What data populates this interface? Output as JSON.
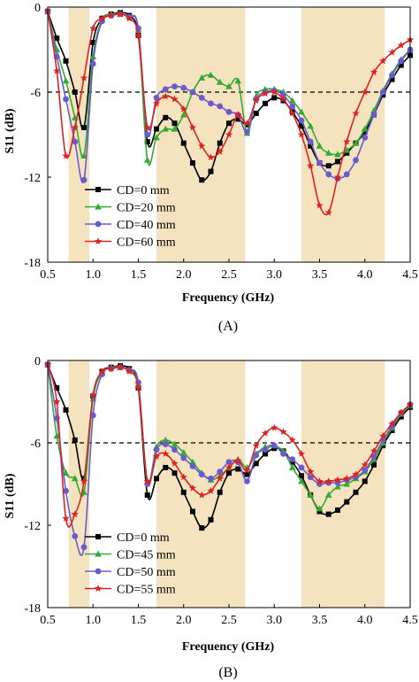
{
  "chart_data": [
    {
      "type": "line",
      "panel_label": "(A)",
      "xlabel": "Frequency (GHz)",
      "ylabel": "S11 (dB)",
      "xlim": [
        0.5,
        4.5
      ],
      "ylim": [
        -18,
        0
      ],
      "xticks": [
        "0.5",
        "1.0",
        "1.5",
        "2.0",
        "2.5",
        "3.0",
        "3.5",
        "4.0",
        "4.5"
      ],
      "yticks": [
        "0",
        "-6",
        "-12",
        "-18"
      ],
      "grid": false,
      "legend_position": "lower-left",
      "reference_line": {
        "y": -6,
        "style": "dashed",
        "color": "#000000"
      },
      "shaded_bands": [
        [
          0.73,
          0.96
        ],
        [
          1.7,
          2.68
        ],
        [
          3.3,
          4.22
        ]
      ],
      "band_color": "#f5e3bf",
      "series": [
        {
          "name": "CD=0 mm",
          "color": "#000000",
          "marker": "square",
          "x": [
            0.5,
            0.6,
            0.7,
            0.8,
            0.9,
            1.0,
            1.1,
            1.2,
            1.3,
            1.4,
            1.5,
            1.6,
            1.7,
            1.8,
            1.9,
            2.0,
            2.1,
            2.2,
            2.3,
            2.4,
            2.5,
            2.6,
            2.7,
            2.8,
            2.9,
            3.0,
            3.1,
            3.2,
            3.3,
            3.4,
            3.5,
            3.6,
            3.7,
            3.8,
            3.9,
            4.0,
            4.1,
            4.2,
            4.3,
            4.4,
            4.5
          ],
          "y": [
            -0.3,
            -2.2,
            -3.8,
            -6.0,
            -8.5,
            -2.5,
            -0.8,
            -0.5,
            -0.4,
            -0.6,
            -2.0,
            -9.5,
            -8.6,
            -7.8,
            -8.2,
            -9.6,
            -11.0,
            -12.2,
            -11.6,
            -9.6,
            -8.2,
            -7.9,
            -8.3,
            -7.5,
            -6.8,
            -6.4,
            -6.6,
            -7.4,
            -8.4,
            -9.8,
            -11.0,
            -11.2,
            -10.9,
            -10.3,
            -9.6,
            -8.8,
            -7.6,
            -6.2,
            -5.1,
            -4.1,
            -3.4
          ]
        },
        {
          "name": "CD=20 mm",
          "color": "#33aa33",
          "marker": "triangle",
          "x": [
            0.5,
            0.6,
            0.7,
            0.8,
            0.9,
            1.0,
            1.1,
            1.2,
            1.3,
            1.4,
            1.5,
            1.6,
            1.7,
            1.8,
            1.9,
            2.0,
            2.1,
            2.2,
            2.3,
            2.4,
            2.5,
            2.6,
            2.7,
            2.8,
            2.9,
            3.0,
            3.1,
            3.2,
            3.3,
            3.4,
            3.5,
            3.6,
            3.7,
            3.8,
            3.9,
            4.0,
            4.1,
            4.2,
            4.3,
            4.4,
            4.5
          ],
          "y": [
            -0.3,
            -3.0,
            -5.2,
            -7.8,
            -10.5,
            -3.5,
            -0.9,
            -0.5,
            -0.5,
            -0.7,
            -1.6,
            -10.8,
            -9.2,
            -8.6,
            -8.6,
            -7.6,
            -6.0,
            -5.0,
            -4.8,
            -5.3,
            -5.6,
            -5.2,
            -8.9,
            -6.3,
            -5.8,
            -5.8,
            -6.0,
            -6.6,
            -7.4,
            -8.4,
            -9.8,
            -10.3,
            -10.4,
            -10.1,
            -9.6,
            -8.6,
            -7.3,
            -5.9,
            -4.7,
            -3.7,
            -3.0
          ]
        },
        {
          "name": "CD=40 mm",
          "color": "#6a5acd",
          "marker": "circle",
          "x": [
            0.5,
            0.6,
            0.7,
            0.8,
            0.9,
            1.0,
            1.1,
            1.2,
            1.3,
            1.4,
            1.5,
            1.6,
            1.7,
            1.8,
            1.9,
            2.0,
            2.1,
            2.2,
            2.3,
            2.4,
            2.5,
            2.6,
            2.7,
            2.8,
            2.9,
            3.0,
            3.1,
            3.2,
            3.3,
            3.4,
            3.5,
            3.6,
            3.7,
            3.8,
            3.9,
            4.0,
            4.1,
            4.2,
            4.3,
            4.4,
            4.5
          ],
          "y": [
            -0.3,
            -3.5,
            -6.5,
            -9.5,
            -12.2,
            -4.0,
            -1.0,
            -0.6,
            -0.5,
            -0.7,
            -1.5,
            -9.0,
            -6.4,
            -5.8,
            -5.6,
            -5.7,
            -6.0,
            -6.4,
            -6.8,
            -7.0,
            -7.4,
            -7.6,
            -8.8,
            -6.5,
            -6.0,
            -5.9,
            -6.2,
            -7.0,
            -8.0,
            -9.5,
            -11.0,
            -11.8,
            -12.1,
            -11.8,
            -10.8,
            -9.2,
            -7.6,
            -6.0,
            -4.8,
            -3.8,
            -3.0
          ]
        },
        {
          "name": "CD=60 mm",
          "color": "#dd2222",
          "marker": "star",
          "x": [
            0.5,
            0.6,
            0.7,
            0.8,
            0.9,
            1.0,
            1.1,
            1.2,
            1.3,
            1.4,
            1.5,
            1.6,
            1.7,
            1.8,
            1.9,
            2.0,
            2.1,
            2.2,
            2.3,
            2.4,
            2.5,
            2.6,
            2.7,
            2.8,
            2.9,
            3.0,
            3.1,
            3.2,
            3.3,
            3.4,
            3.5,
            3.6,
            3.7,
            3.8,
            3.9,
            4.0,
            4.1,
            4.2,
            4.3,
            4.4,
            4.5
          ],
          "y": [
            -0.3,
            -4.5,
            -10.5,
            -8.5,
            -5.0,
            -1.5,
            -0.8,
            -0.6,
            -0.5,
            -0.8,
            -2.0,
            -8.5,
            -6.8,
            -6.3,
            -6.5,
            -7.2,
            -8.5,
            -9.8,
            -10.6,
            -10.2,
            -9.0,
            -7.6,
            -8.2,
            -6.6,
            -6.1,
            -6.0,
            -6.5,
            -7.5,
            -9.0,
            -11.2,
            -14.0,
            -14.5,
            -12.0,
            -9.5,
            -7.5,
            -6.0,
            -4.6,
            -3.8,
            -3.2,
            -2.7,
            -2.3
          ]
        }
      ]
    },
    {
      "type": "line",
      "panel_label": "(B)",
      "xlabel": "Frequency (GHz)",
      "ylabel": "S11 (dB)",
      "xlim": [
        0.5,
        4.5
      ],
      "ylim": [
        -18,
        0
      ],
      "xticks": [
        "0.5",
        "1.0",
        "1.5",
        "2.0",
        "2.5",
        "3.0",
        "3.5",
        "4.0",
        "4.5"
      ],
      "yticks": [
        "0",
        "-6",
        "-12",
        "-18"
      ],
      "grid": false,
      "legend_position": "lower-left",
      "reference_line": {
        "y": -6,
        "style": "dashed",
        "color": "#000000"
      },
      "shaded_bands": [
        [
          0.73,
          0.96
        ],
        [
          1.7,
          2.68
        ],
        [
          3.3,
          4.22
        ]
      ],
      "band_color": "#f5e3bf",
      "series": [
        {
          "name": "CD=0 mm",
          "color": "#000000",
          "marker": "square",
          "x": [
            0.5,
            0.6,
            0.7,
            0.8,
            0.9,
            1.0,
            1.1,
            1.2,
            1.3,
            1.4,
            1.5,
            1.6,
            1.7,
            1.8,
            1.9,
            2.0,
            2.1,
            2.2,
            2.3,
            2.4,
            2.5,
            2.6,
            2.7,
            2.8,
            2.9,
            3.0,
            3.1,
            3.2,
            3.3,
            3.4,
            3.5,
            3.6,
            3.7,
            3.8,
            3.9,
            4.0,
            4.1,
            4.2,
            4.3,
            4.4,
            4.5
          ],
          "y": [
            -0.3,
            -2.0,
            -3.6,
            -5.8,
            -8.6,
            -2.6,
            -0.8,
            -0.5,
            -0.4,
            -0.6,
            -2.0,
            -9.8,
            -8.6,
            -7.8,
            -8.2,
            -9.6,
            -11.0,
            -12.2,
            -11.6,
            -9.6,
            -8.2,
            -7.9,
            -8.3,
            -7.5,
            -6.8,
            -6.4,
            -6.6,
            -7.4,
            -8.4,
            -9.8,
            -11.0,
            -11.2,
            -10.9,
            -10.3,
            -9.6,
            -8.8,
            -7.6,
            -6.2,
            -5.1,
            -4.1,
            -3.4
          ]
        },
        {
          "name": "CD=45 mm",
          "color": "#33aa33",
          "marker": "triangle",
          "x": [
            0.5,
            0.6,
            0.7,
            0.8,
            0.9,
            1.0,
            1.1,
            1.2,
            1.3,
            1.4,
            1.5,
            1.6,
            1.7,
            1.8,
            1.9,
            2.0,
            2.1,
            2.2,
            2.3,
            2.4,
            2.5,
            2.6,
            2.7,
            2.8,
            2.9,
            3.0,
            3.1,
            3.2,
            3.3,
            3.4,
            3.5,
            3.6,
            3.7,
            3.8,
            3.9,
            4.0,
            4.1,
            4.2,
            4.3,
            4.4,
            4.5
          ],
          "y": [
            -0.3,
            -5.5,
            -8.2,
            -8.6,
            -9.6,
            -2.8,
            -0.9,
            -0.5,
            -0.5,
            -0.7,
            -1.7,
            -8.8,
            -6.3,
            -5.8,
            -6.1,
            -6.7,
            -7.4,
            -8.2,
            -8.7,
            -8.4,
            -7.8,
            -7.2,
            -7.8,
            -6.8,
            -6.3,
            -6.2,
            -6.6,
            -7.8,
            -8.8,
            -9.8,
            -10.8,
            -9.8,
            -9.2,
            -9.0,
            -8.6,
            -8.1,
            -7.2,
            -6.0,
            -4.9,
            -3.9,
            -3.3
          ]
        },
        {
          "name": "CD=50 mm",
          "color": "#6a5acd",
          "marker": "circle",
          "x": [
            0.5,
            0.6,
            0.7,
            0.8,
            0.9,
            1.0,
            1.1,
            1.2,
            1.3,
            1.4,
            1.5,
            1.6,
            1.7,
            1.8,
            1.9,
            2.0,
            2.1,
            2.2,
            2.3,
            2.4,
            2.5,
            2.6,
            2.7,
            2.8,
            2.9,
            3.0,
            3.1,
            3.2,
            3.3,
            3.4,
            3.5,
            3.6,
            3.7,
            3.8,
            3.9,
            4.0,
            4.1,
            4.2,
            4.3,
            4.4,
            4.5
          ],
          "y": [
            -0.3,
            -4.2,
            -9.5,
            -12.8,
            -13.6,
            -4.0,
            -1.0,
            -0.6,
            -0.5,
            -0.7,
            -1.6,
            -9.0,
            -6.5,
            -6.1,
            -6.5,
            -7.1,
            -7.7,
            -8.3,
            -8.6,
            -8.1,
            -7.4,
            -7.4,
            -8.8,
            -6.9,
            -6.5,
            -6.2,
            -6.8,
            -7.2,
            -7.8,
            -8.5,
            -9.0,
            -8.9,
            -8.9,
            -8.7,
            -8.5,
            -8.0,
            -7.0,
            -5.8,
            -4.8,
            -3.8,
            -3.2
          ]
        },
        {
          "name": "CD=55 mm",
          "color": "#dd2222",
          "marker": "star",
          "x": [
            0.5,
            0.6,
            0.7,
            0.8,
            0.9,
            1.0,
            1.1,
            1.2,
            1.3,
            1.4,
            1.5,
            1.6,
            1.7,
            1.8,
            1.9,
            2.0,
            2.1,
            2.2,
            2.3,
            2.4,
            2.5,
            2.6,
            2.7,
            2.8,
            2.9,
            3.0,
            3.1,
            3.2,
            3.3,
            3.4,
            3.5,
            3.6,
            3.7,
            3.8,
            3.9,
            4.0,
            4.1,
            4.2,
            4.3,
            4.4,
            4.5
          ],
          "y": [
            -0.3,
            -3.0,
            -11.5,
            -11.2,
            -8.8,
            -2.5,
            -0.8,
            -0.6,
            -0.5,
            -0.8,
            -2.0,
            -8.8,
            -7.0,
            -6.8,
            -7.5,
            -8.5,
            -9.3,
            -9.8,
            -9.5,
            -8.6,
            -7.8,
            -7.3,
            -8.0,
            -6.2,
            -5.3,
            -4.9,
            -5.2,
            -5.8,
            -6.8,
            -8.1,
            -8.8,
            -8.8,
            -8.7,
            -8.6,
            -8.3,
            -7.6,
            -6.6,
            -5.5,
            -4.6,
            -3.8,
            -3.2
          ]
        }
      ]
    }
  ]
}
